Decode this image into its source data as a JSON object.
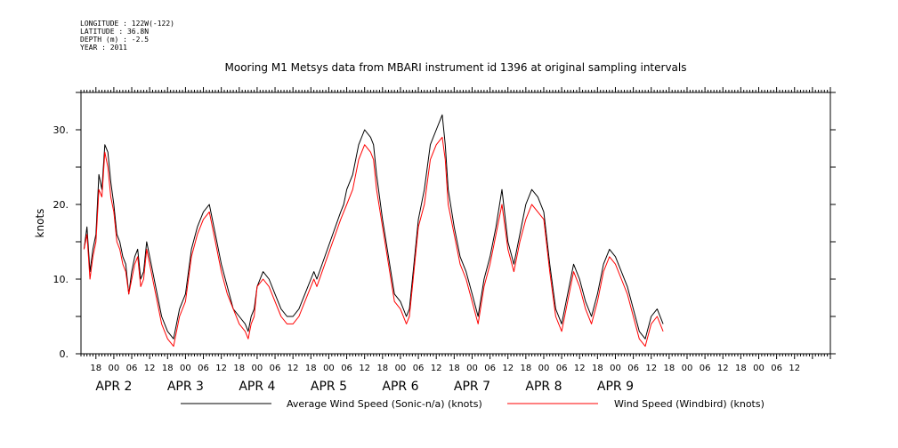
{
  "header": {
    "longitude": "LONGITUDE : 122W(-122)",
    "latitude": "LATITUDE : 36.8N",
    "depth": "DEPTH (m) : -2.5",
    "year": "YEAR : 2011"
  },
  "chart_data": {
    "type": "line",
    "title": "Mooring M1 Metsys data from MBARI instrument id 1396 at original sampling intervals",
    "xlabel": "",
    "ylabel": "knots",
    "ylim": [
      0,
      35
    ],
    "yticks": [
      0,
      10,
      20,
      30
    ],
    "ytick_labels": [
      "0.",
      "10.",
      "20.",
      "30."
    ],
    "x_units": "hours since 2011-04-02 00:00",
    "xlim": [
      -11,
      240
    ],
    "hour_ticks": [
      "18",
      "00",
      "06",
      "12",
      "18",
      "00",
      "06",
      "12",
      "18",
      "00",
      "06",
      "12",
      "18",
      "00",
      "06",
      "12",
      "18",
      "00",
      "06",
      "12",
      "18",
      "00",
      "06",
      "12",
      "18",
      "00",
      "06",
      "12",
      "18",
      "00",
      "06",
      "12",
      "18",
      "00",
      "06",
      "12",
      "18",
      "00",
      "06",
      "12"
    ],
    "day_labels": [
      {
        "text": "APR  2",
        "at": 0
      },
      {
        "text": "APR  3",
        "at": 24
      },
      {
        "text": "APR  4",
        "at": 48
      },
      {
        "text": "APR  5",
        "at": 72
      },
      {
        "text": "APR  6",
        "at": 96
      },
      {
        "text": "APR  7",
        "at": 120
      },
      {
        "text": "APR  8",
        "at": 144
      },
      {
        "text": "APR  9",
        "at": 168
      }
    ],
    "grid": false,
    "legend_position": "bottom",
    "series": [
      {
        "name": "Average Wind Speed (Sonic-n/a) (knots)",
        "color": "#000000",
        "x": [
          -10,
          -9,
          -8,
          -7,
          -6,
          -5,
          -4,
          -3,
          -2,
          -1,
          0,
          1,
          2,
          3,
          4,
          5,
          6,
          7,
          8,
          9,
          10,
          11,
          12,
          14,
          16,
          18,
          20,
          22,
          24,
          26,
          28,
          30,
          32,
          34,
          36,
          38,
          40,
          42,
          44,
          45,
          46,
          47,
          48,
          50,
          52,
          54,
          56,
          58,
          60,
          62,
          64,
          66,
          67,
          68,
          76,
          77,
          78,
          80,
          82,
          84,
          86,
          87,
          88,
          90,
          92,
          94,
          96,
          98,
          99,
          100,
          102,
          104,
          106,
          108,
          110,
          111,
          112,
          114,
          116,
          118,
          120,
          122,
          124,
          126,
          128,
          130,
          132,
          134,
          136,
          138,
          140,
          142,
          144,
          146,
          148,
          150,
          152,
          154,
          156,
          158,
          160,
          162,
          164,
          166,
          168,
          170,
          172,
          174,
          176,
          178,
          180,
          182,
          184
        ],
        "y": [
          14,
          17,
          11,
          14,
          16,
          24,
          22,
          28,
          27,
          23,
          20,
          16,
          15,
          13,
          12,
          8,
          11,
          13,
          14,
          10,
          11,
          15,
          13,
          9,
          5,
          3,
          2,
          6,
          8,
          14,
          17,
          19,
          20,
          16,
          12,
          9,
          6,
          5,
          4,
          3,
          5,
          6,
          9,
          11,
          10,
          8,
          6,
          5,
          5,
          6,
          8,
          10,
          11,
          10,
          19,
          20,
          22,
          24,
          28,
          30,
          29,
          28,
          24,
          18,
          13,
          8,
          7,
          5,
          6,
          10,
          18,
          22,
          28,
          30,
          32,
          28,
          22,
          17,
          13,
          11,
          8,
          5,
          10,
          13,
          17,
          22,
          15,
          12,
          16,
          20,
          22,
          21,
          19,
          12,
          6,
          4,
          8,
          12,
          10,
          7,
          5,
          8,
          12,
          14,
          13,
          11,
          9,
          6,
          3,
          2,
          5,
          6,
          4
        ]
      },
      {
        "name": "Wind Speed (Windbird) (knots)",
        "color": "#ff0000",
        "x": [
          -10,
          -9,
          -8,
          -7,
          -6,
          -5,
          -4,
          -3,
          -2,
          -1,
          0,
          1,
          2,
          3,
          4,
          5,
          6,
          7,
          8,
          9,
          10,
          11,
          12,
          14,
          16,
          18,
          20,
          22,
          24,
          26,
          28,
          30,
          32,
          34,
          36,
          38,
          40,
          42,
          44,
          45,
          46,
          47,
          48,
          50,
          52,
          54,
          56,
          58,
          60,
          62,
          64,
          66,
          67,
          68,
          76,
          77,
          78,
          80,
          82,
          84,
          86,
          87,
          88,
          90,
          92,
          94,
          96,
          98,
          99,
          100,
          102,
          104,
          106,
          108,
          110,
          111,
          112,
          114,
          116,
          118,
          120,
          122,
          124,
          126,
          128,
          130,
          132,
          134,
          136,
          138,
          140,
          142,
          144,
          146,
          148,
          150,
          152,
          154,
          156,
          158,
          160,
          162,
          164,
          166,
          168,
          170,
          172,
          174,
          176,
          178,
          180,
          182,
          184
        ],
        "y": [
          14,
          16,
          10,
          13,
          15,
          22,
          21,
          27,
          25,
          21,
          19,
          15,
          14,
          12,
          11,
          8,
          10,
          12,
          13,
          9,
          10,
          14,
          12,
          8,
          4,
          2,
          1,
          5,
          7,
          13,
          16,
          18,
          19,
          15,
          11,
          8,
          6,
          4,
          3,
          2,
          4,
          5,
          9,
          10,
          9,
          7,
          5,
          4,
          4,
          5,
          7,
          9,
          10,
          9,
          18,
          19,
          20,
          22,
          26,
          28,
          27,
          26,
          22,
          17,
          12,
          7,
          6,
          4,
          5,
          9,
          17,
          20,
          26,
          28,
          29,
          26,
          20,
          16,
          12,
          10,
          7,
          4,
          9,
          12,
          16,
          20,
          14,
          11,
          15,
          18,
          20,
          19,
          18,
          11,
          5,
          3,
          7,
          11,
          9,
          6,
          4,
          7,
          11,
          13,
          12,
          10,
          8,
          5,
          2,
          1,
          4,
          5,
          3
        ]
      }
    ]
  }
}
